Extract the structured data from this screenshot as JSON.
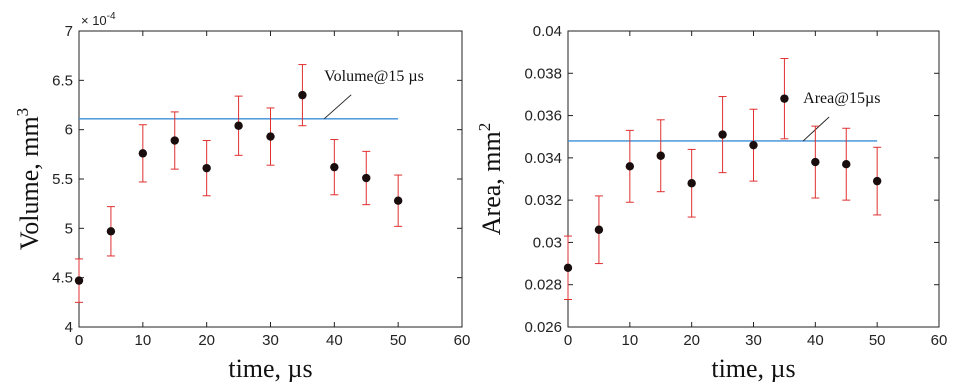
{
  "chart_data": [
    {
      "type": "scatter",
      "xlabel": "time, µs",
      "ylabel": "Volume, mm",
      "ylabel_superscript": "3",
      "exponent_label": "× 10",
      "exponent_power": "-4",
      "xlim": [
        0,
        60
      ],
      "ylim": [
        4,
        7
      ],
      "xticks": [
        "0",
        "10",
        "20",
        "30",
        "40",
        "50",
        "60"
      ],
      "yticks": [
        "4",
        "4.5",
        "5",
        "5.5",
        "6",
        "6.5",
        "7"
      ],
      "x": [
        0,
        5,
        10,
        15,
        20,
        25,
        30,
        35,
        40,
        45,
        50
      ],
      "y": [
        4.47,
        4.97,
        5.76,
        5.89,
        5.61,
        6.04,
        5.93,
        6.35,
        5.62,
        5.51,
        5.28
      ],
      "error": [
        0.22,
        0.25,
        0.29,
        0.29,
        0.28,
        0.3,
        0.29,
        0.31,
        0.28,
        0.27,
        0.26
      ],
      "reference_line": {
        "label": "Volume@15 µs",
        "y": 6.11,
        "x_range": [
          0,
          50
        ]
      },
      "grid": false,
      "colors": {
        "points": "#1a0d0d",
        "error_bars": "#e03030",
        "reference": "#3b8ed8"
      }
    },
    {
      "type": "scatter",
      "xlabel": "time, µs",
      "ylabel": "Area, mm",
      "ylabel_superscript": "2",
      "xlim": [
        0,
        60
      ],
      "ylim": [
        0.026,
        0.04
      ],
      "xticks": [
        "0",
        "10",
        "20",
        "30",
        "40",
        "50",
        "60"
      ],
      "yticks": [
        "0.026",
        "0.028",
        "0.03",
        "0.032",
        "0.034",
        "0.036",
        "0.038",
        "0.04"
      ],
      "x": [
        0,
        5,
        10,
        15,
        20,
        25,
        30,
        35,
        40,
        45,
        50
      ],
      "y": [
        0.0288,
        0.0306,
        0.0336,
        0.0341,
        0.0328,
        0.0351,
        0.0346,
        0.0368,
        0.0338,
        0.0337,
        0.0329
      ],
      "error": [
        0.0015,
        0.0016,
        0.0017,
        0.0017,
        0.0016,
        0.0018,
        0.0017,
        0.0019,
        0.0017,
        0.0017,
        0.0016
      ],
      "reference_line": {
        "label": "Area@15µs",
        "y": 0.0348,
        "x_range": [
          0,
          50
        ]
      },
      "grid": false,
      "colors": {
        "points": "#1a0d0d",
        "error_bars": "#e03030",
        "reference": "#3b8ed8"
      }
    }
  ]
}
